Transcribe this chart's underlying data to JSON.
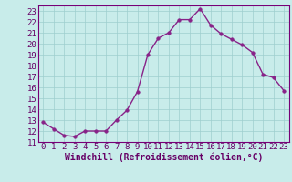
{
  "x": [
    0,
    1,
    2,
    3,
    4,
    5,
    6,
    7,
    8,
    9,
    10,
    11,
    12,
    13,
    14,
    15,
    16,
    17,
    18,
    19,
    20,
    21,
    22,
    23
  ],
  "y": [
    12.8,
    12.2,
    11.6,
    11.5,
    12.0,
    12.0,
    12.0,
    13.0,
    13.9,
    15.6,
    19.0,
    20.5,
    21.0,
    22.2,
    22.2,
    23.2,
    21.7,
    20.9,
    20.4,
    19.9,
    19.2,
    17.2,
    16.9,
    15.7
  ],
  "line_color": "#882288",
  "marker": "o",
  "marker_size": 2.5,
  "bg_color": "#c8ecea",
  "grid_color": "#9ecece",
  "xlabel": "Windchill (Refroidissement éolien,°C)",
  "ylim": [
    11,
    23.5
  ],
  "xlim": [
    -0.5,
    23.5
  ],
  "yticks": [
    11,
    12,
    13,
    14,
    15,
    16,
    17,
    18,
    19,
    20,
    21,
    22,
    23
  ],
  "xticks": [
    0,
    1,
    2,
    3,
    4,
    5,
    6,
    7,
    8,
    9,
    10,
    11,
    12,
    13,
    14,
    15,
    16,
    17,
    18,
    19,
    20,
    21,
    22,
    23
  ],
  "axis_fontsize": 6.5,
  "label_fontsize": 7.0,
  "line_width": 1.0
}
